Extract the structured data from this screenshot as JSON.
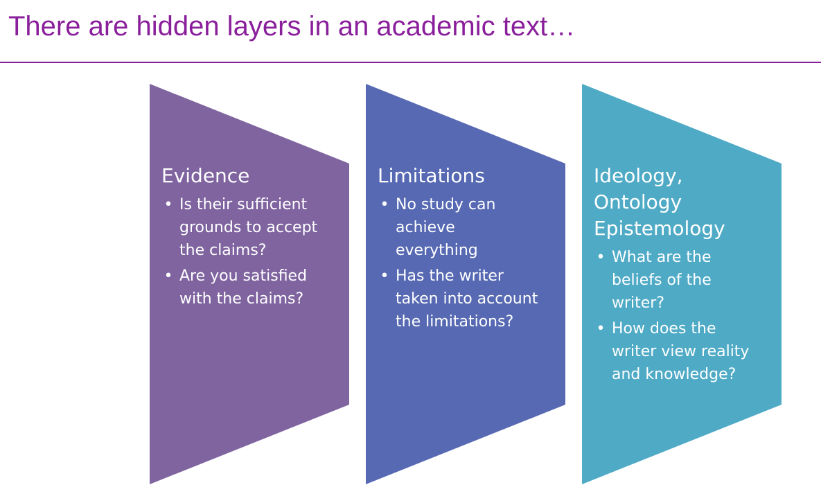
{
  "title": "There are hidden layers in an academic text…",
  "colors": {
    "title": "#8a1f9b",
    "evidence_panel": "#7f64a0",
    "limitations_panel": "#5669b2",
    "ideology_panel": "#4faac6",
    "panel_text": "#ffffff"
  },
  "panels": [
    {
      "heading_lines": [
        "Evidence"
      ],
      "bullets": [
        {
          "lines": [
            "Is their sufficient",
            "grounds to accept",
            "the claims?"
          ]
        },
        {
          "lines": [
            "Are you satisfied",
            "with the claims?"
          ]
        }
      ]
    },
    {
      "heading_lines": [
        "Limitations"
      ],
      "bullets": [
        {
          "lines": [
            "No study can",
            "achieve",
            "everything"
          ]
        },
        {
          "lines": [
            "Has the writer",
            "taken into account",
            "the limitations?"
          ]
        }
      ]
    },
    {
      "heading_lines": [
        "Ideology,",
        "Ontology",
        "Epistemology"
      ],
      "bullets": [
        {
          "lines": [
            "What are the",
            "beliefs of the",
            "writer?"
          ]
        },
        {
          "lines": [
            "How does the",
            "writer view  reality",
            "and knowledge?"
          ]
        }
      ]
    }
  ]
}
